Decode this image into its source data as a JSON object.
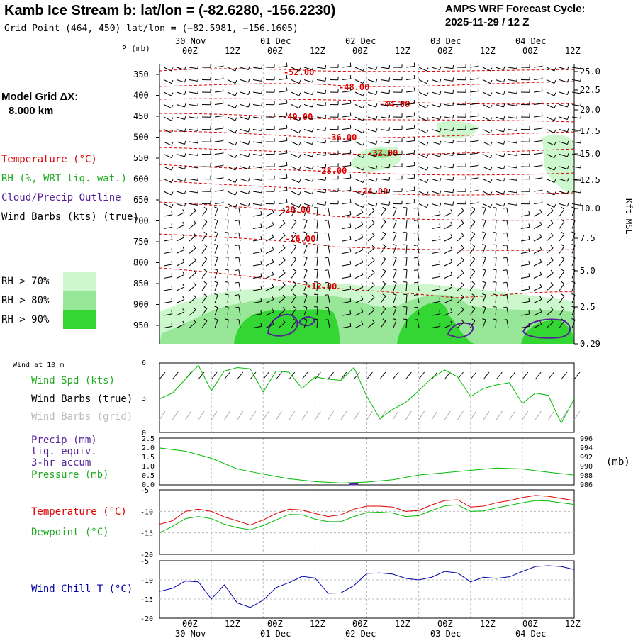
{
  "header": {
    "title": "Kamb Ice Stream b:  lat/lon = (-82.6280, -156.2230)",
    "gridpoint": "Grid Point (464, 450) lat/lon = (−82.5981, −156.1605)",
    "cycle_line1": "AMPS WRF Forecast Cycle:",
    "cycle_line2": "2025-11-29 / 12  Z"
  },
  "sidebar": {
    "model_grid_label": "Model Grid ΔX:",
    "model_grid_value": "8.000 km",
    "legend_temperature": "Temperature (°C)",
    "legend_rh": "RH (%, WRT liq. wat.)",
    "legend_cloud": "Cloud/Precip Outline",
    "legend_wind": "Wind Barbs (kts) (true)",
    "rh_legend": [
      {
        "label": "RH > 70%",
        "color": "#cdf7cd"
      },
      {
        "label": "RH > 80%",
        "color": "#98e698"
      },
      {
        "label": "RH > 90%",
        "color": "#33d633"
      }
    ]
  },
  "colors": {
    "temperature": "#dd0000",
    "dewpoint": "#00bb00",
    "windchill": "#0000aa",
    "pressure": "#00bb00",
    "precip": "#552299",
    "cloud": "#552299",
    "grid": "#bbbbbb",
    "barb_grid": "#aaaaaa"
  },
  "time_axis": {
    "tick_labels": [
      "00Z",
      "12Z",
      "00Z",
      "12Z",
      "00Z",
      "12Z",
      "00Z",
      "12Z",
      "00Z",
      "12Z"
    ],
    "date_labels": [
      "30 Nov",
      "01 Dec",
      "02 Dec",
      "03 Dec",
      "04 Dec"
    ]
  },
  "chart_data": [
    {
      "type": "heatmap",
      "name": "upper-air-cross-section",
      "ylabel": "P (mb)",
      "ylabel_right": "Kft MSL",
      "p_ticks": [
        350,
        400,
        450,
        500,
        550,
        600,
        650,
        700,
        750,
        800,
        850,
        900,
        950
      ],
      "kft_ticks": [
        "25.0",
        "22.5",
        "20.0",
        "17.5",
        "15.0",
        "12.5",
        "10.0",
        "7.5",
        "5.0",
        "2.5",
        "0.29"
      ],
      "isotherm_labels": [
        "-52.00",
        "-48.00",
        "-44.00",
        "-40.00",
        "-36.00",
        "-32.00",
        "-28.00",
        "-24.00",
        "-20.00",
        "-16.00",
        "-12.00"
      ],
      "rh_thresholds": [
        70,
        80,
        90
      ]
    },
    {
      "type": "line",
      "name": "surface-wind",
      "title": "Wind at 10 m",
      "labels": {
        "speed": "Wind Spd (kts)",
        "barbs_true": "Wind Barbs (true)",
        "barbs_grid": "Wind Barbs (grid)"
      },
      "y_ticks": [
        "6",
        "3",
        "0"
      ],
      "ylim": [
        0,
        6
      ],
      "x_hours": [
        0,
        3,
        6,
        9,
        12,
        15,
        18,
        21,
        24,
        27,
        30,
        33,
        36,
        39,
        42,
        45,
        48,
        51,
        54,
        57,
        60,
        63,
        66,
        69,
        72,
        75,
        78,
        81,
        84,
        87,
        90,
        93,
        96
      ],
      "speed": [
        2.9,
        3.4,
        4.6,
        5.8,
        3.6,
        5.3,
        5.6,
        5.5,
        3.5,
        5.3,
        5.2,
        3.8,
        4.8,
        4.6,
        4.5,
        5.6,
        3.1,
        1.2,
        2.0,
        2.6,
        3.6,
        4.7,
        5.4,
        4.8,
        3.1,
        3.8,
        4.1,
        4.3,
        2.5,
        3.4,
        3.2,
        0.8,
        2.9
      ]
    },
    {
      "type": "line",
      "name": "precip-pressure",
      "labels": {
        "precip": "Precip (mm)",
        "liq": "liq. equiv.",
        "accum": "3-hr accum",
        "pressure": "Pressure (mb)"
      },
      "left_ticks": [
        "2.5",
        "2.0",
        "1.5",
        "1.0",
        "0.5",
        "0.0"
      ],
      "right_ticks": [
        "996",
        "994",
        "992",
        "990",
        "988",
        "986"
      ],
      "right_unit": "(mb)",
      "precip_ylim": [
        0,
        2.5
      ],
      "pressure_ylim": [
        986,
        996
      ],
      "x_hours": [
        0,
        6,
        12,
        18,
        24,
        30,
        36,
        42,
        48,
        54,
        60,
        66,
        72,
        78,
        84,
        90,
        96
      ],
      "pressure": [
        993.9,
        993.2,
        991.7,
        989.4,
        988.3,
        987.3,
        986.7,
        986.4,
        986.6,
        987.1,
        988.1,
        988.6,
        989.1,
        989.6,
        989.4,
        988.7,
        988.1
      ],
      "precip": [
        0,
        0,
        0,
        0,
        0,
        0,
        0.02,
        0,
        0,
        0,
        0,
        0,
        0,
        0,
        0,
        0,
        0
      ]
    },
    {
      "type": "line",
      "name": "temperature-dewpoint",
      "labels": {
        "temperature": "Temperature (°C)",
        "dewpoint": "Dewpoint (°C)"
      },
      "y_ticks": [
        "-5",
        "-10",
        "-15",
        "-20"
      ],
      "ylim": [
        -20,
        -5
      ],
      "x_hours": [
        0,
        3,
        6,
        9,
        12,
        15,
        18,
        21,
        24,
        27,
        30,
        33,
        36,
        39,
        42,
        45,
        48,
        51,
        54,
        57,
        60,
        63,
        66,
        69,
        72,
        75,
        78,
        81,
        84,
        87,
        90,
        93,
        96
      ],
      "temperature": [
        -13,
        -12.2,
        -10,
        -9.5,
        -10,
        -11.3,
        -12.2,
        -13.2,
        -12,
        -10.5,
        -9.5,
        -9.7,
        -10.5,
        -11.2,
        -10.8,
        -9.5,
        -8.8,
        -8.8,
        -9,
        -10,
        -9.8,
        -8.5,
        -7.5,
        -7.3,
        -9,
        -8.8,
        -8,
        -7.5,
        -6.8,
        -6.3,
        -6.5,
        -7,
        -7.5
      ],
      "dewpoint": [
        -15,
        -13.5,
        -11.7,
        -11.2,
        -11.7,
        -13,
        -13.8,
        -14.3,
        -13.3,
        -12,
        -10.7,
        -10.8,
        -11.8,
        -12.4,
        -12.4,
        -11.2,
        -10.3,
        -10.2,
        -10.4,
        -11.2,
        -11,
        -9.8,
        -8.7,
        -8.5,
        -10,
        -9.9,
        -9.2,
        -8.6,
        -8,
        -7.5,
        -7.6,
        -8,
        -8.4
      ]
    },
    {
      "type": "line",
      "name": "wind-chill",
      "labels": {
        "windchill": "Wind Chill T (°C)"
      },
      "y_ticks": [
        "-5",
        "-10",
        "-15",
        "-20"
      ],
      "ylim": [
        -20,
        -5
      ],
      "x_hours": [
        0,
        3,
        6,
        9,
        12,
        15,
        18,
        21,
        24,
        27,
        30,
        33,
        36,
        39,
        42,
        45,
        48,
        51,
        54,
        57,
        60,
        63,
        66,
        69,
        72,
        75,
        78,
        81,
        84,
        87,
        90,
        93,
        96
      ],
      "windchill": [
        -13,
        -12.2,
        -10.3,
        -10.5,
        -15,
        -11.3,
        -16,
        -17.2,
        -15.3,
        -12,
        -10.7,
        -9.1,
        -9.5,
        -13.5,
        -13.4,
        -11.5,
        -8.3,
        -8.2,
        -8.5,
        -9.6,
        -10,
        -9.3,
        -7.8,
        -8.2,
        -10.5,
        -9.3,
        -9.6,
        -9.2,
        -7.8,
        -6.5,
        -6.3,
        -6.5,
        -7.3
      ]
    }
  ]
}
